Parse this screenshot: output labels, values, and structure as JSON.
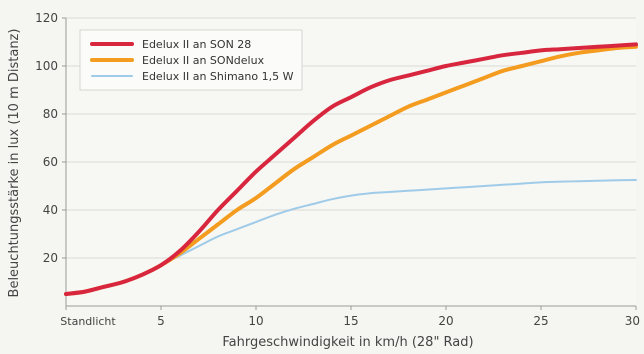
{
  "chart_data": {
    "type": "line",
    "title": "",
    "xlabel": "Fahrgeschwindigkeit in km/h  (28\" Rad)",
    "ylabel": "Beleuchtungsstärke in lux  (10 m Distanz)",
    "xlim": [
      0,
      30
    ],
    "ylim": [
      0,
      120
    ],
    "xticks": [
      0,
      5,
      10,
      15,
      20,
      25,
      30
    ],
    "xtick_labels": [
      "Standlicht",
      "5",
      "10",
      "15",
      "20",
      "25",
      "30"
    ],
    "yticks": [
      20,
      40,
      60,
      80,
      100,
      120
    ],
    "ytick_labels": [
      "20",
      "40",
      "60",
      "80",
      "100",
      "120"
    ],
    "grid": "horizontal",
    "legend_position": "top-left",
    "series": [
      {
        "name": "Edelux II an SON 28",
        "color": "#d7263d",
        "x": [
          0,
          1,
          2,
          3,
          4,
          5,
          6,
          7,
          8,
          9,
          10,
          11,
          12,
          13,
          14,
          15,
          16,
          17,
          18,
          19,
          20,
          21,
          22,
          23,
          24,
          25,
          26,
          27,
          28,
          29,
          30
        ],
        "values": [
          5,
          6,
          8,
          10,
          13,
          17,
          23,
          31,
          40,
          48,
          56,
          63,
          70,
          77,
          83,
          87,
          91,
          94,
          96,
          98,
          100,
          101.5,
          103,
          104.5,
          105.5,
          106.5,
          107,
          107.5,
          108,
          108.5,
          109
        ]
      },
      {
        "name": "Edelux II an SONdelux",
        "color": "#f39c1f",
        "x": [
          0,
          1,
          2,
          3,
          4,
          5,
          6,
          7,
          8,
          9,
          10,
          11,
          12,
          13,
          14,
          15,
          16,
          17,
          18,
          19,
          20,
          21,
          22,
          23,
          24,
          25,
          26,
          27,
          28,
          29,
          30
        ],
        "values": [
          5,
          6,
          8,
          10,
          13,
          17,
          22,
          28,
          34,
          40,
          45,
          51,
          57,
          62,
          67,
          71,
          75,
          79,
          83,
          86,
          89,
          92,
          95,
          98,
          100,
          102,
          104,
          105.5,
          106.5,
          107.5,
          108
        ]
      },
      {
        "name": "Edelux II an Shimano 1,5 W",
        "color": "#9fcbe8",
        "x": [
          0,
          1,
          2,
          3,
          4,
          5,
          6,
          7,
          8,
          9,
          10,
          11,
          12,
          13,
          14,
          15,
          16,
          17,
          18,
          19,
          20,
          21,
          22,
          23,
          24,
          25,
          26,
          27,
          28,
          29,
          30
        ],
        "values": [
          5,
          6,
          8,
          10,
          13,
          17,
          21,
          25,
          29,
          32,
          35,
          38,
          40.5,
          42.5,
          44.5,
          46,
          47,
          47.5,
          48,
          48.5,
          49,
          49.5,
          50,
          50.5,
          51,
          51.5,
          51.8,
          52,
          52.2,
          52.4,
          52.5
        ]
      }
    ]
  }
}
